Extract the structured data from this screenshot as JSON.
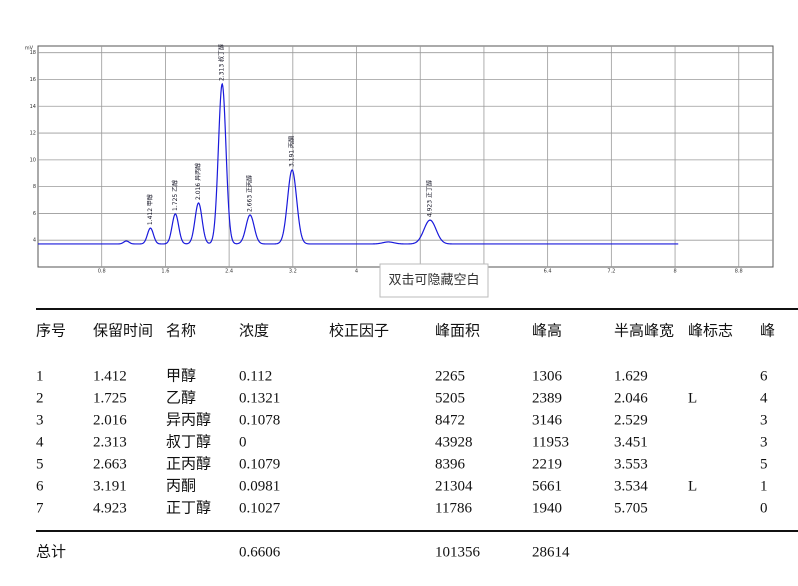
{
  "chart_data": {
    "type": "chromatogram",
    "y_unit": "mV",
    "xlim": [
      0,
      9.23
    ],
    "ylim": [
      2,
      18.5
    ],
    "xticks": [
      0.8,
      1.6,
      2.4,
      3.2,
      4,
      4.8,
      5.6,
      6.4,
      7.2,
      8,
      8.8
    ],
    "yticks": [
      4,
      6,
      8,
      10,
      12,
      14,
      16,
      18
    ],
    "grid": true,
    "color": "#1a1adb",
    "baseline": 3.72,
    "trace_end": 8.04,
    "peaks": [
      {
        "rt": 1.11,
        "height": 3.94
      },
      {
        "label": "1.412 甲醇",
        "rt": 1.412,
        "height": 4.9
      },
      {
        "label": "1.725 乙醇",
        "rt": 1.725,
        "height": 5.96
      },
      {
        "label": "2.016 异丙醇",
        "rt": 2.016,
        "height": 6.78
      },
      {
        "label": "2.313 叔丁醇",
        "rt": 2.313,
        "height": 15.66
      },
      {
        "label": "2.663 正丙醇",
        "rt": 2.663,
        "height": 5.88
      },
      {
        "label": "3.191 丙酮",
        "rt": 3.191,
        "height": 9.24
      },
      {
        "rt": 4.4,
        "height": 3.87
      },
      {
        "label": "4.923 正丁醇",
        "rt": 4.923,
        "height": 5.5
      }
    ]
  },
  "tooltip": "双击可隐藏空白",
  "table": {
    "headers": [
      "序号",
      "保留时间",
      "名称",
      "浓度",
      "校正因子",
      "峰面积",
      "峰高",
      "半高峰宽",
      "峰标志",
      "峰"
    ],
    "rows": [
      [
        1,
        1.412,
        "甲醇",
        0.112,
        null,
        2265,
        1306,
        1.629,
        null,
        6
      ],
      [
        2,
        1.725,
        "乙醇",
        0.1321,
        null,
        5205,
        2389,
        2.046,
        "L",
        4
      ],
      [
        3,
        2.016,
        "异丙醇",
        0.1078,
        null,
        8472,
        3146,
        2.529,
        null,
        3
      ],
      [
        4,
        2.313,
        "叔丁醇",
        0,
        null,
        43928,
        11953,
        3.451,
        null,
        3
      ],
      [
        5,
        2.663,
        "正丙醇",
        0.1079,
        null,
        8396,
        2219,
        3.553,
        null,
        5
      ],
      [
        6,
        3.191,
        "丙酮",
        0.0981,
        null,
        21304,
        5661,
        3.534,
        "L",
        1
      ],
      [
        7,
        4.923,
        "正丁醇",
        0.1027,
        null,
        11786,
        1940,
        5.705,
        null,
        0
      ]
    ],
    "total": {
      "label": "总计",
      "concentration": 0.6606,
      "area": 101356,
      "height": 28614
    }
  }
}
